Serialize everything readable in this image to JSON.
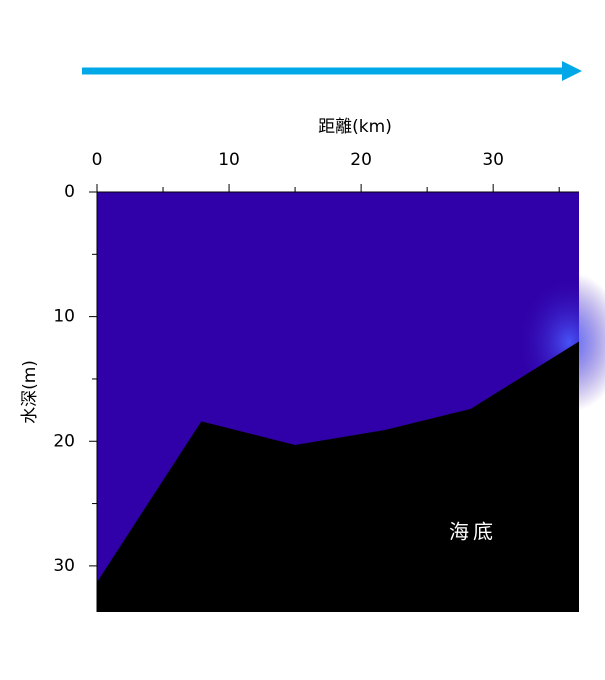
{
  "chart_data": {
    "type": "area",
    "x_label": "距離(km)",
    "y_label": "水深(m)",
    "annotation": "海底",
    "x": [
      0,
      7.9,
      15,
      21.8,
      28.3,
      36.5
    ],
    "values": [
      31.3,
      18.4,
      20.3,
      19.1,
      17.4,
      12.0
    ],
    "color": "#000000",
    "water_color": "#3000a8",
    "xlim": [
      0,
      36.5
    ],
    "ylim": [
      0,
      33.7
    ],
    "xticks": [
      0,
      10,
      20,
      30
    ],
    "xminorticks": [
      5,
      15,
      25,
      35
    ],
    "yticks": [
      0,
      10,
      20,
      30
    ],
    "yminorticks": [
      5,
      15,
      25
    ],
    "y_inverted": true,
    "x_axis_top": true
  }
}
